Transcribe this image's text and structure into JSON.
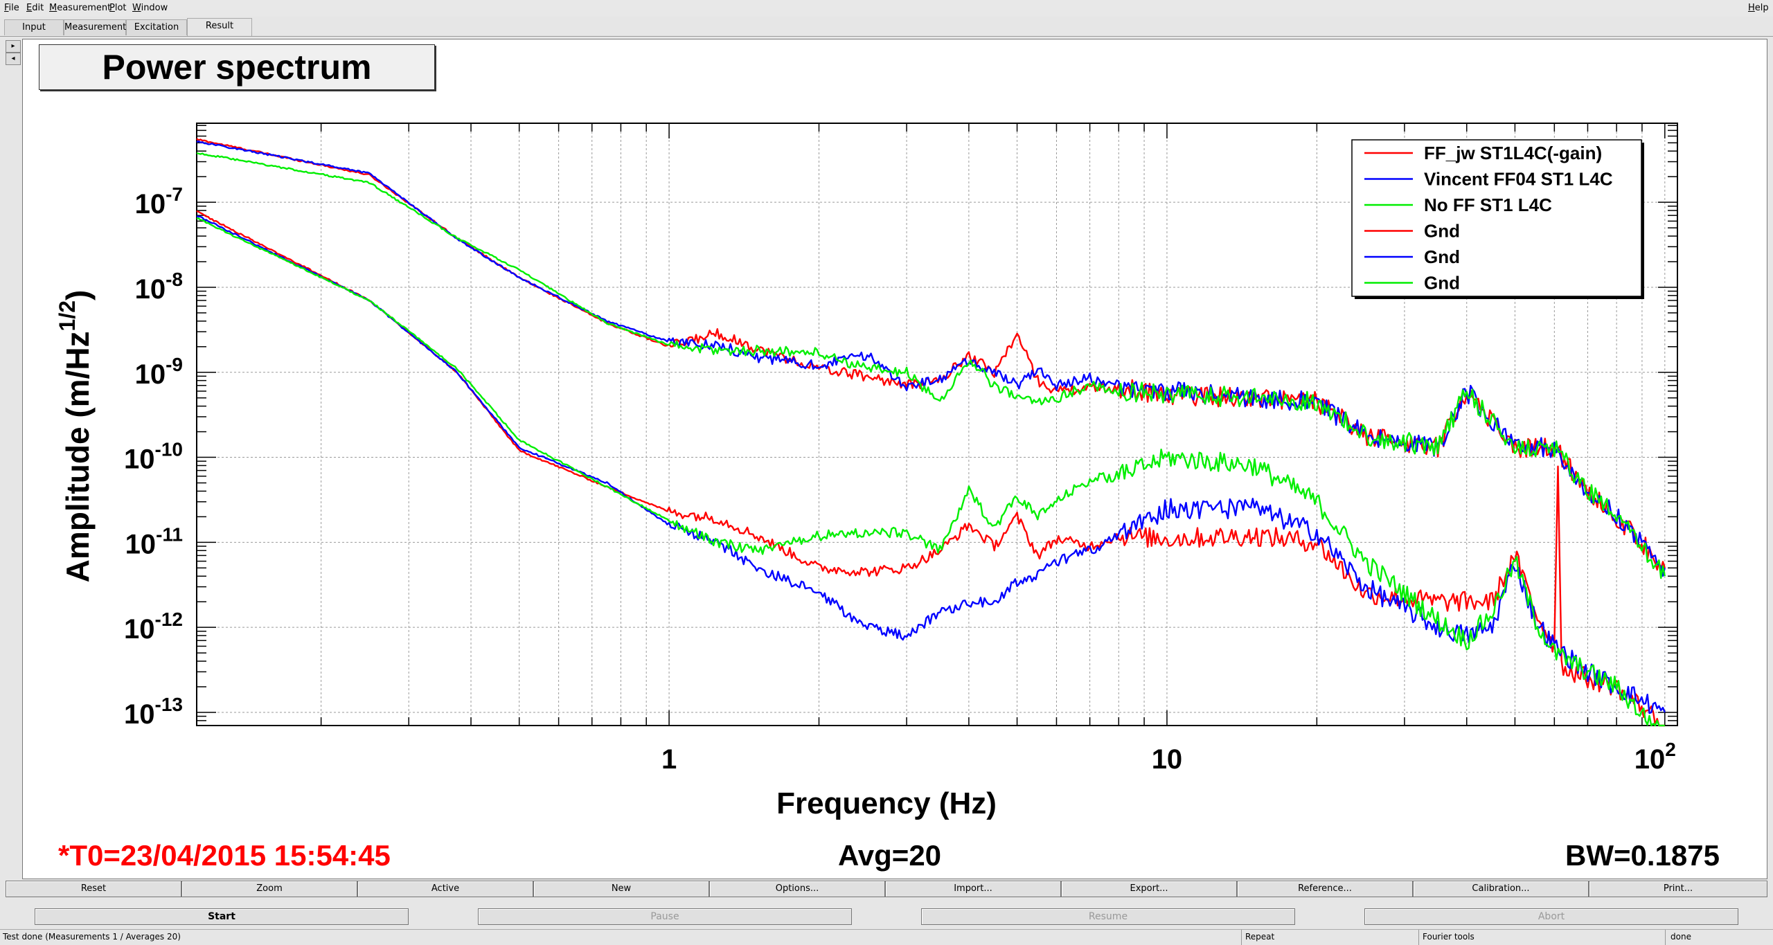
{
  "menu": {
    "items": [
      "File",
      "Edit",
      "Measurement",
      "Plot",
      "Window"
    ],
    "help": "Help"
  },
  "tabs": [
    "Input",
    "Measurement",
    "Excitation",
    "Result"
  ],
  "active_tab": "Result",
  "plot": {
    "title": "Power spectrum",
    "xlabel": "Frequency (Hz)",
    "ylabel_main": "Amplitude (m/Hz",
    "ylabel_sup": "1/2",
    "ylabel_end": ")",
    "x_ticks": [
      {
        "v": 1,
        "label": "1"
      },
      {
        "v": 10,
        "label": "10"
      }
    ],
    "x_tick_last": {
      "v": 100,
      "base": "10",
      "exp": "2"
    },
    "y_ticks": [
      {
        "v": 1e-07,
        "base": "10",
        "exp": "-7"
      },
      {
        "v": 1e-08,
        "base": "10",
        "exp": "-8"
      },
      {
        "v": 1e-09,
        "base": "10",
        "exp": "-9"
      },
      {
        "v": 1e-10,
        "base": "10",
        "exp": "-10"
      },
      {
        "v": 1e-11,
        "base": "10",
        "exp": "-11"
      },
      {
        "v": 1e-12,
        "base": "10",
        "exp": "-12"
      },
      {
        "v": 1e-13,
        "base": "10",
        "exp": "-13"
      }
    ],
    "t0": "*T0=23/04/2015 15:54:45",
    "avg": "Avg=20",
    "bw": "BW=0.1875",
    "t0_color": "#ff0000"
  },
  "chart_data": {
    "type": "line",
    "xlim": [
      0.1125,
      106
    ],
    "ylim": [
      7e-14,
      8.5e-07
    ],
    "xscale": "log",
    "yscale": "log",
    "grid": true,
    "legend_position": "top-right",
    "series": [
      {
        "name": "FF_jw ST1L4C(-gain)",
        "color": "#ff0000",
        "x": [
          0.1125,
          0.25,
          0.375,
          0.5,
          0.75,
          1,
          1.25,
          1.5,
          2,
          2.5,
          3,
          3.5,
          4,
          4.5,
          5,
          5.5,
          6,
          7,
          8,
          10,
          15,
          20,
          25,
          35,
          40,
          50,
          60,
          70,
          80,
          100
        ],
        "y": [
          5.5e-07,
          2.1e-07,
          3.8e-08,
          1.3e-08,
          3.8e-09,
          2e-09,
          2.9e-09,
          1.9e-09,
          1.1e-09,
          9e-10,
          7e-10,
          8e-10,
          1.6e-09,
          1e-09,
          2.8e-09,
          8e-10,
          6e-10,
          6.5e-10,
          6.5e-10,
          5.5e-10,
          5e-10,
          4.5e-10,
          1.8e-10,
          1.3e-10,
          6e-10,
          1.3e-10,
          1.3e-10,
          4e-11,
          2e-11,
          5e-12
        ]
      },
      {
        "name": "Vincent FF04 ST1 L4C",
        "color": "#0000ff",
        "x": [
          0.1125,
          0.25,
          0.375,
          0.5,
          0.75,
          1,
          1.25,
          1.5,
          2,
          2.5,
          3,
          3.5,
          4,
          4.5,
          5,
          5.5,
          6,
          7,
          8,
          10,
          15,
          20,
          25,
          35,
          40,
          50,
          60,
          70,
          80,
          100
        ],
        "y": [
          5.2e-07,
          2.2e-07,
          3.7e-08,
          1.3e-08,
          4e-09,
          2.3e-09,
          2.1e-09,
          1.5e-09,
          1.2e-09,
          1.6e-09,
          7e-10,
          8e-10,
          1.4e-09,
          1e-09,
          7e-10,
          1.1e-09,
          7e-10,
          8.5e-10,
          7e-10,
          6e-10,
          5e-10,
          4.5e-10,
          1.8e-10,
          1.3e-10,
          6e-10,
          1.3e-10,
          1.3e-10,
          4e-11,
          2e-11,
          5e-12
        ]
      },
      {
        "name": "No FF ST1 L4C",
        "color": "#00ee00",
        "x": [
          0.1125,
          0.25,
          0.375,
          0.5,
          0.75,
          1,
          1.25,
          1.5,
          2,
          2.5,
          3,
          3.5,
          4,
          4.5,
          5,
          5.5,
          6,
          7,
          8,
          10,
          15,
          20,
          25,
          35,
          40,
          50,
          60,
          70,
          80,
          100
        ],
        "y": [
          3.8e-07,
          1.7e-07,
          3.8e-08,
          1.6e-08,
          3.8e-09,
          2.1e-09,
          1.8e-09,
          1.8e-09,
          1.7e-09,
          1.1e-09,
          1e-09,
          4.5e-10,
          1.4e-09,
          7e-10,
          5e-10,
          4.5e-10,
          5e-10,
          7e-10,
          6e-10,
          5.5e-10,
          5e-10,
          4.5e-10,
          1.8e-10,
          1.3e-10,
          6e-10,
          1.3e-10,
          1.3e-10,
          4e-11,
          2e-11,
          4e-12
        ]
      },
      {
        "name": "Gnd",
        "color": "#ff0000",
        "x": [
          0.1125,
          0.25,
          0.375,
          0.5,
          0.75,
          1,
          1.25,
          1.5,
          2,
          2.5,
          3,
          3.5,
          4,
          4.5,
          5,
          5.5,
          6,
          7,
          8,
          10,
          15,
          20,
          25,
          35,
          40,
          45,
          50,
          55,
          60,
          61,
          62,
          70,
          80,
          100
        ],
        "y": [
          7.8e-08,
          7e-09,
          1e-09,
          1.2e-10,
          4.5e-11,
          2.3e-11,
          1.9e-11,
          1.2e-11,
          5e-12,
          4.5e-12,
          5e-12,
          8e-12,
          1.6e-11,
          9e-12,
          2e-11,
          7e-12,
          1.1e-11,
          9e-12,
          1.2e-11,
          1.1e-11,
          1.2e-11,
          1e-11,
          2.5e-12,
          2e-12,
          2e-12,
          2e-12,
          7e-12,
          1.5e-12,
          6e-13,
          1e-10,
          3.5e-13,
          2.5e-13,
          2e-13,
          7e-14
        ]
      },
      {
        "name": "Gnd",
        "color": "#0000ff",
        "x": [
          0.1125,
          0.25,
          0.375,
          0.5,
          0.75,
          1,
          1.25,
          1.5,
          2,
          2.5,
          3,
          3.5,
          4,
          4.5,
          5,
          5.5,
          6,
          7,
          8,
          10,
          15,
          20,
          25,
          35,
          40,
          45,
          50,
          55,
          60,
          70,
          80,
          100
        ],
        "y": [
          7e-08,
          7e-09,
          1e-09,
          1.3e-10,
          5e-11,
          1.6e-11,
          1e-11,
          5e-12,
          2.5e-12,
          1e-12,
          8e-13,
          1.5e-12,
          2e-12,
          2e-12,
          3.5e-12,
          4e-12,
          6e-12,
          8e-12,
          1.2e-11,
          2.5e-11,
          2.5e-11,
          1.3e-11,
          3e-12,
          1e-12,
          8e-13,
          1e-12,
          6e-12,
          1.2e-12,
          6e-13,
          3e-13,
          2e-13,
          1e-13
        ]
      },
      {
        "name": "Gnd",
        "color": "#00ee00",
        "x": [
          0.1125,
          0.25,
          0.375,
          0.5,
          0.75,
          1,
          1.25,
          1.5,
          2,
          2.5,
          3,
          3.5,
          4,
          4.5,
          5,
          5.5,
          6,
          7,
          8,
          10,
          15,
          20,
          25,
          35,
          40,
          45,
          50,
          55,
          60,
          70,
          80,
          100
        ],
        "y": [
          6.5e-08,
          7e-09,
          1.1e-09,
          1.6e-10,
          4.5e-11,
          1.8e-11,
          1e-11,
          8e-12,
          1.2e-11,
          1.3e-11,
          1.3e-11,
          8e-12,
          4e-11,
          1.5e-11,
          3.5e-11,
          2e-11,
          3e-11,
          5.5e-11,
          6e-11,
          1e-10,
          8e-11,
          3e-11,
          6e-12,
          1.2e-12,
          7e-13,
          1.5e-12,
          6e-12,
          1.2e-12,
          5e-13,
          3e-13,
          2e-13,
          5e-14
        ]
      }
    ]
  },
  "buttons": [
    "Reset",
    "Zoom",
    "Active",
    "New",
    "Options...",
    "Import...",
    "Export...",
    "Reference...",
    "Calibration...",
    "Print..."
  ],
  "controls": [
    "Start",
    "Pause",
    "Resume",
    "Abort"
  ],
  "status": {
    "message": "Test done (Measurements 1 / Averages 20)",
    "mode": "Repeat",
    "tool": "Fourier tools",
    "state": "done"
  }
}
